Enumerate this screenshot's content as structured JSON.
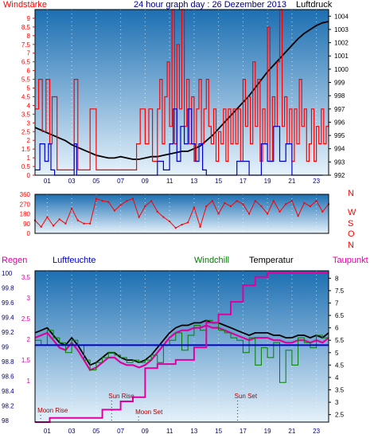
{
  "title": "24 hour graph day : 26 Dezember 2013",
  "colors": {
    "red": "#ff0000",
    "blue": "#0000cc",
    "navy": "#000080",
    "magenta": "#e000a0",
    "green": "#008000",
    "black": "#000000",
    "bgTop": "#1c6fb2",
    "bgBottom": "#e6f2fb"
  },
  "chart_data": [
    {
      "type": "line",
      "name": "wind-pressure",
      "left_label": "Windstärke",
      "right_label": "Luftdruck",
      "x_ticks": [
        "01",
        "03",
        "05",
        "07",
        "09",
        "11",
        "13",
        "15",
        "17",
        "19",
        "21",
        "23"
      ],
      "y_left_ticks": [
        "0",
        "0.5",
        "1",
        "1.5",
        "2",
        "2.5",
        "3",
        "3.5",
        "4",
        "4.5",
        "5",
        "5.5",
        "6",
        "6.5",
        "7",
        "7.5",
        "8",
        "8.5",
        "9"
      ],
      "y_right_ticks": [
        "992",
        "993",
        "994",
        "995",
        "996",
        "997",
        "998",
        "999",
        "1000",
        "1001",
        "1002",
        "1003",
        "1004"
      ],
      "ylim_left": [
        0,
        9.5
      ],
      "ylim_right": [
        992,
        1004.5
      ],
      "series": [
        {
          "role": "pressure",
          "color": "#000000",
          "x": [
            0,
            0.5,
            1,
            1.5,
            2,
            2.5,
            3,
            3.5,
            4,
            4.5,
            5,
            5.5,
            6,
            6.5,
            7,
            7.5,
            8,
            8.5,
            9,
            9.5,
            10,
            10.5,
            11,
            11.5,
            12,
            12.5,
            13,
            13.5,
            14,
            14.5,
            15,
            15.5,
            16,
            16.5,
            17,
            17.5,
            18,
            18.5,
            19,
            19.5,
            20,
            20.5,
            21,
            21.5,
            22,
            22.5,
            23,
            23.5,
            24
          ],
          "y": [
            995.6,
            995.4,
            995.2,
            995.0,
            994.8,
            994.6,
            994.3,
            994.1,
            993.9,
            993.7,
            993.5,
            993.4,
            993.3,
            993.3,
            993.4,
            993.3,
            993.2,
            993.2,
            993.3,
            993.4,
            993.4,
            993.5,
            993.6,
            993.7,
            993.8,
            993.8,
            994.0,
            994.2,
            994.6,
            995.0,
            995.5,
            996.0,
            996.5,
            997.0,
            997.5,
            998.0,
            998.6,
            999.2,
            999.8,
            1000.3,
            1000.8,
            1001.3,
            1001.8,
            1002.3,
            1002.7,
            1003.0,
            1003.3,
            1003.5,
            1003.6
          ]
        },
        {
          "role": "gust",
          "color": "#ff0000",
          "x": [
            0,
            0.3,
            0.6,
            0.9,
            1.2,
            1.4,
            1.8,
            2.5,
            3.0,
            3.2,
            3.5,
            4.3,
            4.5,
            5.0,
            6.0,
            7.5,
            8.0,
            8.3,
            8.6,
            9.0,
            9.3,
            9.6,
            10.0,
            10.2,
            10.4,
            10.6,
            10.8,
            11.0,
            11.2,
            11.4,
            11.6,
            11.8,
            12.0,
            12.2,
            12.4,
            12.6,
            12.8,
            13.0,
            13.2,
            13.4,
            13.6,
            13.8,
            14.0,
            14.2,
            14.4,
            14.6,
            14.8,
            15.0,
            15.2,
            15.4,
            15.6,
            15.8,
            16.0,
            16.2,
            16.4,
            16.6,
            16.8,
            17.0,
            17.2,
            17.4,
            17.6,
            17.8,
            18.0,
            18.2,
            18.4,
            18.6,
            18.8,
            19.0,
            19.2,
            19.4,
            19.6,
            19.8,
            20.0,
            20.2,
            20.4,
            20.6,
            20.8,
            21.0,
            21.2,
            21.4,
            21.6,
            21.8,
            22.0,
            22.2,
            22.4,
            22.6,
            22.8,
            23.0,
            23.2,
            23.4,
            23.6,
            23.8,
            24.0
          ],
          "y": [
            3.8,
            5.5,
            2.5,
            5.5,
            1.8,
            4.5,
            0.3,
            0.3,
            0.3,
            5.5,
            0.3,
            0.3,
            3.8,
            0.3,
            0.3,
            0.3,
            0.3,
            1.8,
            3.8,
            1.8,
            3.8,
            0.8,
            3.8,
            5.5,
            1.8,
            4.5,
            6.5,
            2.8,
            9.5,
            1.8,
            7.5,
            3.8,
            9.5,
            2.8,
            5.5,
            1.8,
            4.5,
            0.8,
            3.8,
            5.5,
            1.8,
            3.8,
            5.5,
            2.8,
            1.8,
            3.8,
            0.8,
            2.5,
            1.8,
            3.8,
            0.8,
            3.8,
            1.8,
            3.8,
            1.8,
            3.8,
            0.8,
            5.5,
            2.8,
            4.5,
            1.8,
            6.5,
            2.8,
            5.5,
            0.8,
            3.8,
            1.8,
            8.5,
            0.8,
            4.5,
            2.8,
            6.5,
            9.5,
            2.8,
            4.5,
            1.8,
            3.8,
            0.8,
            3.8,
            1.8,
            5.5,
            2.8,
            3.8,
            0.8,
            1.8,
            3.8,
            0.8,
            2.8,
            1.8,
            3.8,
            1.8,
            2.8,
            3.8
          ]
        },
        {
          "role": "wind",
          "color": "#0000cc",
          "x": [
            0,
            0.4,
            0.8,
            1.1,
            1.3,
            1.6,
            3.0,
            3.2,
            3.4,
            9.5,
            10.0,
            10.5,
            11.0,
            11.3,
            11.6,
            11.9,
            12.2,
            12.5,
            12.8,
            13.1,
            13.4,
            13.7,
            14.0,
            15.5,
            16.5,
            17.5,
            18.5,
            19.0,
            19.5,
            20.0,
            20.5,
            21.0,
            22.5,
            23.5
          ],
          "y": [
            0.3,
            1.8,
            0.8,
            1.8,
            0.3,
            0,
            0,
            1.8,
            0,
            0,
            0.8,
            0.3,
            1.8,
            3.8,
            0.8,
            2.8,
            1.8,
            3.8,
            1.8,
            0.8,
            1.8,
            0.3,
            0,
            0,
            0.8,
            0,
            1.8,
            0.8,
            2.8,
            0.8,
            1.8,
            0,
            0,
            0
          ]
        }
      ]
    },
    {
      "type": "scatter",
      "name": "wind-direction",
      "y_left_ticks": [
        "0",
        "90",
        "180",
        "270",
        "360"
      ],
      "y_right_labels": [
        "N",
        "W",
        "S",
        "O",
        "N"
      ],
      "ylim": [
        0,
        360
      ],
      "series": [
        {
          "role": "direction",
          "color": "#ff0000",
          "x": [
            0,
            0.5,
            1,
            1.5,
            2,
            2.5,
            3,
            3.5,
            4,
            4.5,
            5,
            5.5,
            6,
            6.5,
            7,
            7.5,
            8,
            8.5,
            9,
            9.5,
            10,
            10.5,
            11,
            11.5,
            12,
            12.5,
            13,
            13.5,
            14,
            14.5,
            15,
            15.5,
            16,
            16.5,
            17,
            17.5,
            18,
            18.5,
            19,
            19.5,
            20,
            20.5,
            21,
            21.5,
            22,
            22.5,
            23,
            23.5,
            24
          ],
          "y": [
            120,
            60,
            150,
            70,
            130,
            90,
            230,
            120,
            90,
            90,
            320,
            300,
            290,
            210,
            260,
            300,
            320,
            150,
            250,
            300,
            200,
            150,
            110,
            50,
            80,
            100,
            240,
            60,
            250,
            300,
            180,
            280,
            250,
            300,
            270,
            180,
            300,
            250,
            180,
            300,
            200,
            270,
            300,
            160,
            280,
            250,
            300,
            200,
            270
          ]
        }
      ]
    },
    {
      "type": "line",
      "name": "humidity-temperature",
      "labels": {
        "rain": "Regen",
        "humidity": "Luftfeuchte",
        "windchill": "Windchill",
        "temperature": "Temperatur",
        "dewpoint": "Taupunkt"
      },
      "x_ticks": [
        "01",
        "03",
        "05",
        "07",
        "09",
        "11",
        "13",
        "15",
        "17",
        "19",
        "21",
        "23"
      ],
      "y_rain_ticks": [
        "1",
        "1.5",
        "2",
        "2.5",
        "3",
        "3.5"
      ],
      "y_humidity_ticks": [
        "98",
        "98.2",
        "98.4",
        "98.6",
        "98.8",
        "99",
        "99.2",
        "99.4",
        "99.6",
        "99.8",
        "100"
      ],
      "y_right_ticks": [
        "2.5",
        "3",
        "3.5",
        "4",
        "4.5",
        "5",
        "5.5",
        "6",
        "6.5",
        "7",
        "7.5",
        "8"
      ],
      "ylim_right": [
        2.2,
        8.3
      ],
      "ylim_rain": [
        0,
        3.65
      ],
      "annotations": [
        "Moon Rise",
        "Sun Rise",
        "Moon Set",
        "Sun Set"
      ],
      "annotation_x": [
        0.2,
        6.0,
        8.2,
        16.3
      ],
      "series": [
        {
          "role": "temperature",
          "color": "#000000",
          "x": [
            0,
            0.5,
            1,
            1.5,
            2,
            2.5,
            3,
            3.5,
            4,
            4.5,
            5,
            5.5,
            6,
            6.5,
            7,
            7.5,
            8,
            8.5,
            9,
            9.5,
            10,
            10.5,
            11,
            11.5,
            12,
            12.5,
            13,
            13.5,
            14,
            14.5,
            15,
            15.5,
            16,
            16.5,
            17,
            17.5,
            18,
            18.5,
            19,
            19.5,
            20,
            20.5,
            21,
            21.5,
            22,
            22.5,
            23,
            23.5,
            24
          ],
          "y": [
            5.8,
            5.9,
            6.0,
            5.7,
            5.4,
            5.3,
            5.6,
            5.3,
            4.9,
            4.5,
            4.6,
            4.8,
            5.0,
            5.0,
            4.8,
            4.7,
            4.7,
            4.6,
            4.7,
            4.9,
            5.2,
            5.5,
            5.8,
            6.0,
            6.1,
            6.1,
            6.2,
            6.2,
            6.3,
            6.2,
            6.2,
            6.1,
            6.0,
            5.9,
            5.8,
            5.7,
            5.8,
            5.8,
            5.8,
            5.7,
            5.7,
            5.6,
            5.6,
            5.7,
            5.7,
            5.6,
            5.7,
            5.6,
            5.8
          ]
        },
        {
          "role": "dewpoint",
          "color": "#e000a0",
          "x": [
            0,
            0.5,
            1,
            1.5,
            2,
            2.5,
            3,
            3.5,
            4,
            4.5,
            5,
            5.5,
            6,
            6.5,
            7,
            7.5,
            8,
            8.5,
            9,
            9.5,
            10,
            10.5,
            11,
            11.5,
            12,
            12.5,
            13,
            13.5,
            14,
            14.5,
            15,
            15.5,
            16,
            16.5,
            17,
            17.5,
            18,
            18.5,
            19,
            19.5,
            20,
            20.5,
            21,
            21.5,
            22,
            22.5,
            23,
            23.5,
            24
          ],
          "y": [
            5.6,
            5.7,
            5.8,
            5.5,
            5.2,
            5.1,
            5.4,
            5.1,
            4.7,
            4.3,
            4.4,
            4.6,
            4.8,
            4.8,
            4.6,
            4.5,
            4.5,
            4.4,
            4.5,
            4.7,
            5.0,
            5.3,
            5.6,
            5.8,
            5.9,
            5.9,
            6.0,
            6.0,
            6.1,
            6.0,
            6.0,
            5.9,
            5.8,
            5.7,
            5.6,
            5.5,
            5.6,
            5.6,
            5.6,
            5.5,
            5.5,
            5.4,
            5.4,
            5.5,
            5.5,
            5.4,
            5.5,
            5.4,
            5.6
          ]
        },
        {
          "role": "windchill",
          "color": "#008000",
          "x": [
            0,
            0.5,
            1,
            1.5,
            2,
            2.5,
            3,
            3.5,
            4,
            4.5,
            5,
            5.5,
            6,
            6.5,
            7,
            7.5,
            8,
            8.5,
            9,
            9.5,
            10,
            10.5,
            11,
            11.5,
            12,
            12.5,
            13,
            13.5,
            14,
            14.5,
            15,
            15.5,
            16,
            16.5,
            17,
            17.5,
            18,
            18.5,
            19,
            19.5,
            20,
            20.5,
            21,
            21.5,
            22,
            22.5,
            23,
            23.5,
            24
          ],
          "y": [
            5.5,
            5.3,
            5.9,
            5.6,
            5.4,
            5.0,
            5.5,
            5.3,
            4.7,
            4.3,
            4.6,
            4.8,
            5.0,
            4.9,
            4.8,
            4.6,
            4.7,
            4.6,
            4.7,
            4.9,
            4.6,
            5.3,
            5.5,
            5.8,
            5.1,
            5.7,
            6.1,
            5.9,
            6.3,
            6.2,
            5.9,
            5.8,
            5.6,
            5.5,
            5.0,
            5.6,
            4.5,
            5.2,
            4.8,
            5.4,
            3.8,
            5.1,
            4.5,
            5.6,
            5.4,
            5.2,
            5.7,
            5.6,
            5.8
          ]
        },
        {
          "role": "humidity",
          "color": "#0000cc",
          "x": [
            0,
            24
          ],
          "y": [
            5.3,
            5.3
          ]
        },
        {
          "role": "rain",
          "color": "#e000a0",
          "x": [
            0,
            0.6,
            1.2,
            2.0,
            4.0,
            5.5,
            7.0,
            8.0,
            9.0,
            10.0,
            11.5,
            13.0,
            14.0,
            15.0,
            16.0,
            17.0,
            18.0,
            19.0,
            24.0
          ],
          "y": [
            0,
            0,
            0.1,
            0.1,
            0.1,
            0.3,
            0.5,
            0.6,
            1.3,
            1.4,
            1.5,
            1.8,
            2.4,
            2.6,
            2.9,
            3.3,
            3.5,
            3.6,
            3.6
          ]
        }
      ]
    }
  ]
}
